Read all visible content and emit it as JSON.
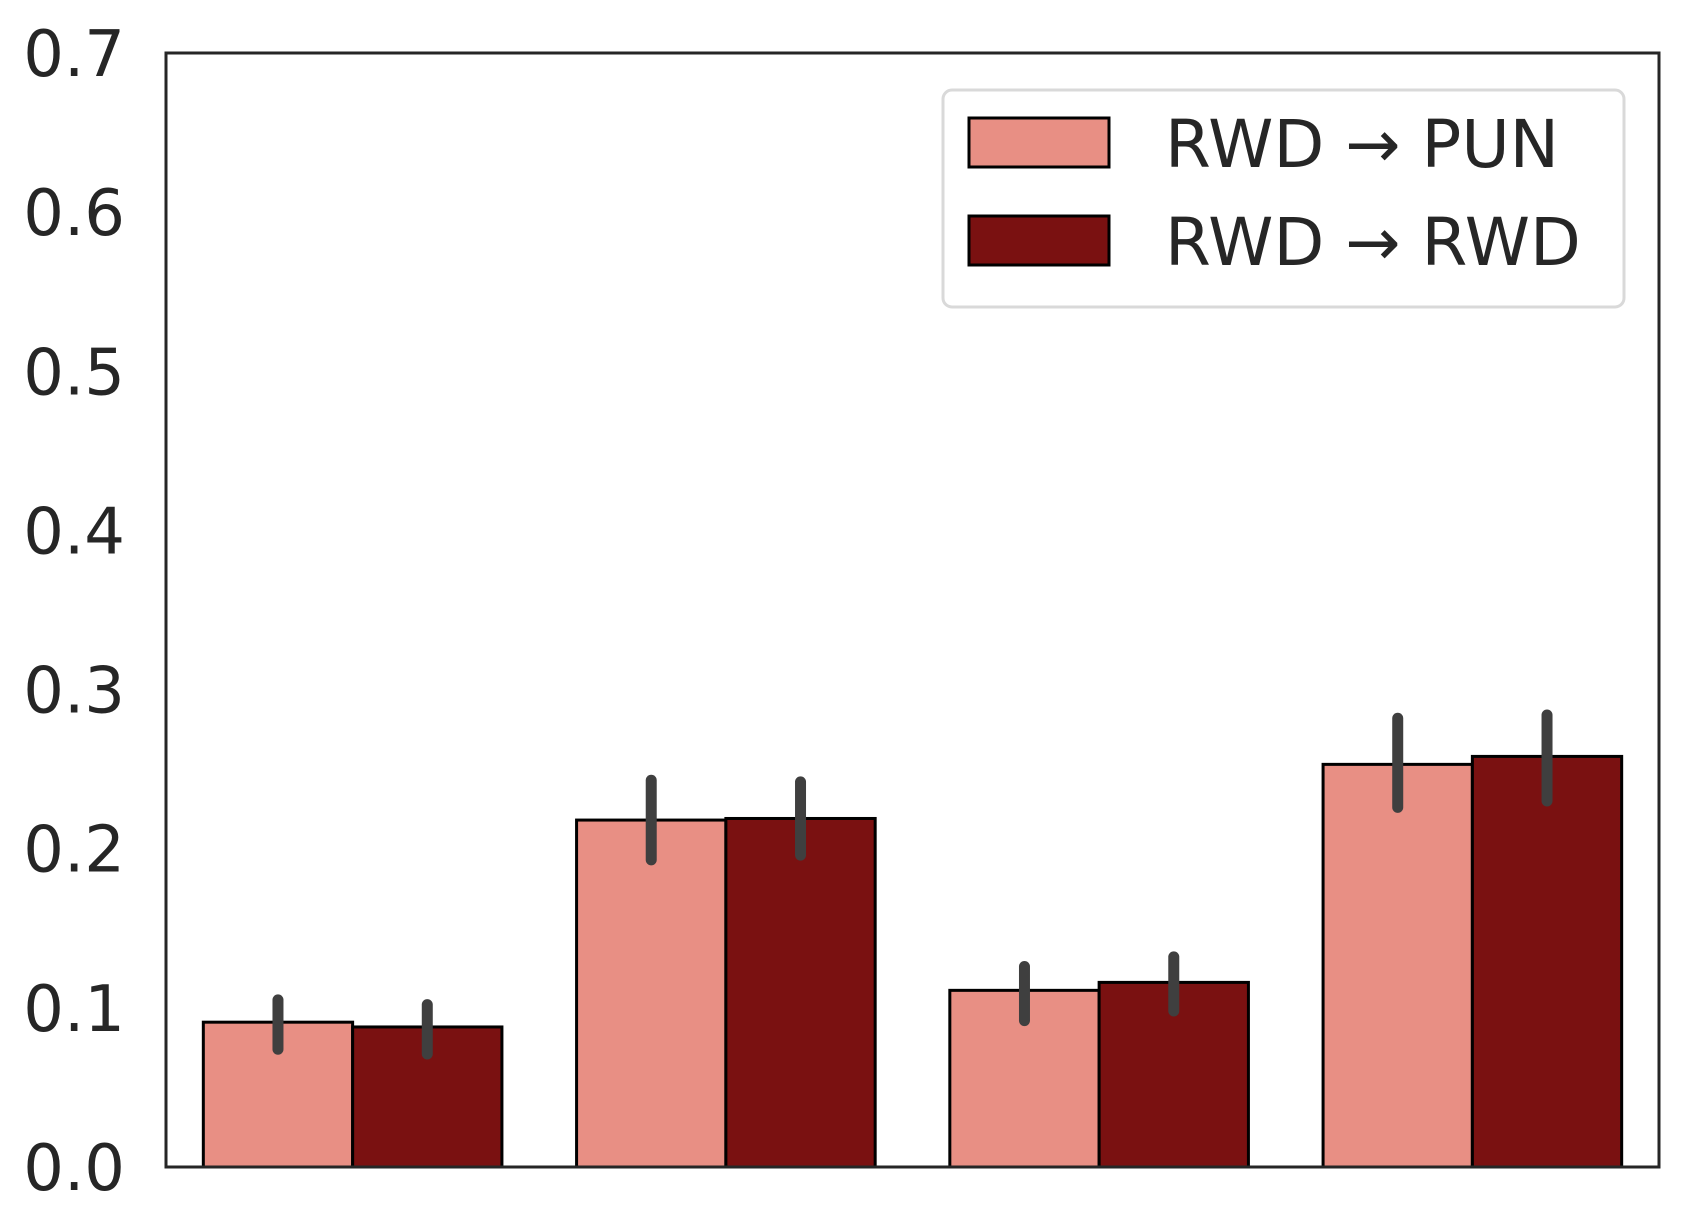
{
  "chart_data": {
    "type": "bar",
    "title": "",
    "xlabel": "",
    "ylabel": "",
    "categories": [
      "",
      "",
      "",
      ""
    ],
    "ylim": [
      0,
      0.7
    ],
    "yticks": [
      "0.0",
      "0.1",
      "0.2",
      "0.3",
      "0.4",
      "0.5",
      "0.6",
      "0.7"
    ],
    "grid": false,
    "legend_position": "top-right",
    "series": [
      {
        "name": "RWD → PUN",
        "color": "#e88f84",
        "values": [
          0.091,
          0.218,
          0.111,
          0.253
        ],
        "error_low": [
          0.074,
          0.193,
          0.092,
          0.226
        ],
        "error_high": [
          0.105,
          0.243,
          0.126,
          0.282
        ]
      },
      {
        "name": "RWD → RWD",
        "color": "#7a1111",
        "values": [
          0.088,
          0.219,
          0.116,
          0.258
        ],
        "error_low": [
          0.071,
          0.196,
          0.098,
          0.23
        ],
        "error_high": [
          0.102,
          0.242,
          0.132,
          0.284
        ]
      }
    ]
  }
}
